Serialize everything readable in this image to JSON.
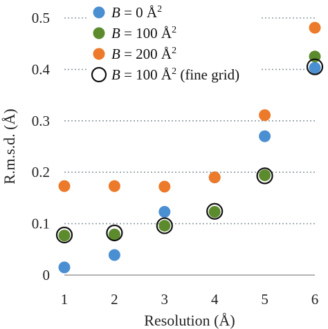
{
  "chart_data": {
    "type": "scatter",
    "xlabel": "Resolution (Å)",
    "ylabel": "R.m.s.d. (Å)",
    "xlim": [
      1,
      6
    ],
    "ylim": [
      0,
      0.5
    ],
    "xticks": [
      1,
      2,
      3,
      4,
      5,
      6
    ],
    "yticks": [
      0,
      0.1,
      0.2,
      0.3,
      0.4,
      0.5
    ],
    "ytick_labels": [
      "0",
      "0.1",
      "0.2",
      "0.3",
      "0.4",
      "0.5"
    ],
    "grid": "horizontal-dotted",
    "legend_placement": "top-left",
    "series": [
      {
        "name": "B = 0 Å²",
        "legend": {
          "var": "B",
          "rest": " = 0 Å",
          "sup": "2"
        },
        "marker": "filled-circle",
        "color": "#4a8fd2",
        "x": [
          1,
          2,
          3,
          4,
          5,
          6
        ],
        "y": [
          0.015,
          0.039,
          0.123,
          0.19,
          0.27,
          0.403
        ]
      },
      {
        "name": "B = 100 Å²",
        "legend": {
          "var": "B",
          "rest": " = 100 Å",
          "sup": "2"
        },
        "marker": "filled-circle",
        "color": "#5b8b2c",
        "x": [
          1,
          2,
          3,
          4,
          5,
          6
        ],
        "y": [
          0.077,
          0.079,
          0.096,
          0.123,
          0.194,
          0.425
        ]
      },
      {
        "name": "B = 200 Å²",
        "legend": {
          "var": "B",
          "rest": " = 200 Å",
          "sup": "2"
        },
        "marker": "filled-circle",
        "color": "#ec7a2a",
        "x": [
          1,
          2,
          3,
          4,
          5,
          6
        ],
        "y": [
          0.173,
          0.173,
          0.172,
          0.19,
          0.311,
          0.481
        ]
      },
      {
        "name": "B = 100 Å² (fine grid)",
        "legend": {
          "var": "B",
          "rest": " = 100 Å",
          "sup": "2",
          "suffix": " (fine grid)"
        },
        "marker": "open-circle",
        "color": "#111111",
        "x": [
          1,
          2,
          3,
          4,
          5,
          6
        ],
        "y": [
          0.078,
          0.082,
          0.096,
          0.124,
          0.193,
          0.405
        ]
      }
    ]
  }
}
